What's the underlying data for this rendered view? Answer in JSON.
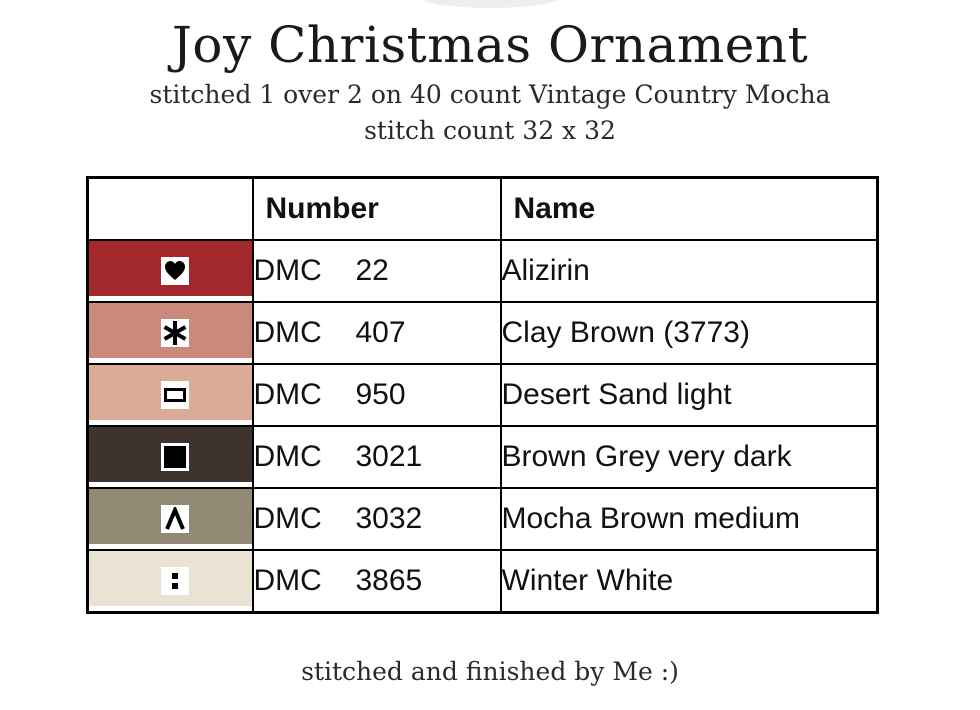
{
  "title": "Joy Christmas Ornament",
  "subtitle_line1": "stitched 1 over 2 on 40 count Vintage Country Mocha",
  "subtitle_line2": "stitch count 32 x 32",
  "footer": "stitched and finished by Me :)",
  "table": {
    "headers": {
      "swatch": "",
      "number": "Number",
      "name": "Name"
    },
    "rows": [
      {
        "brand": "DMC",
        "number": "22",
        "name": "Alizirin",
        "color": "#a3282c",
        "symbol": "heart-icon"
      },
      {
        "brand": "DMC",
        "number": "407",
        "name": "Clay Brown (3773)",
        "color": "#c98a7c",
        "symbol": "asterisk-icon"
      },
      {
        "brand": "DMC",
        "number": "950",
        "name": "Desert Sand light",
        "color": "#dcab97",
        "symbol": "hollow-rectangle-icon"
      },
      {
        "brand": "DMC",
        "number": "3021",
        "name": "Brown Grey very dark",
        "color": "#3f332d",
        "symbol": "filled-square-icon"
      },
      {
        "brand": "DMC",
        "number": "3032",
        "name": "Mocha Brown medium",
        "color": "#938a75",
        "symbol": "caret-icon"
      },
      {
        "brand": "DMC",
        "number": "3865",
        "name": "Winter White",
        "color": "#eae3d4",
        "symbol": "colon-icon"
      }
    ]
  }
}
